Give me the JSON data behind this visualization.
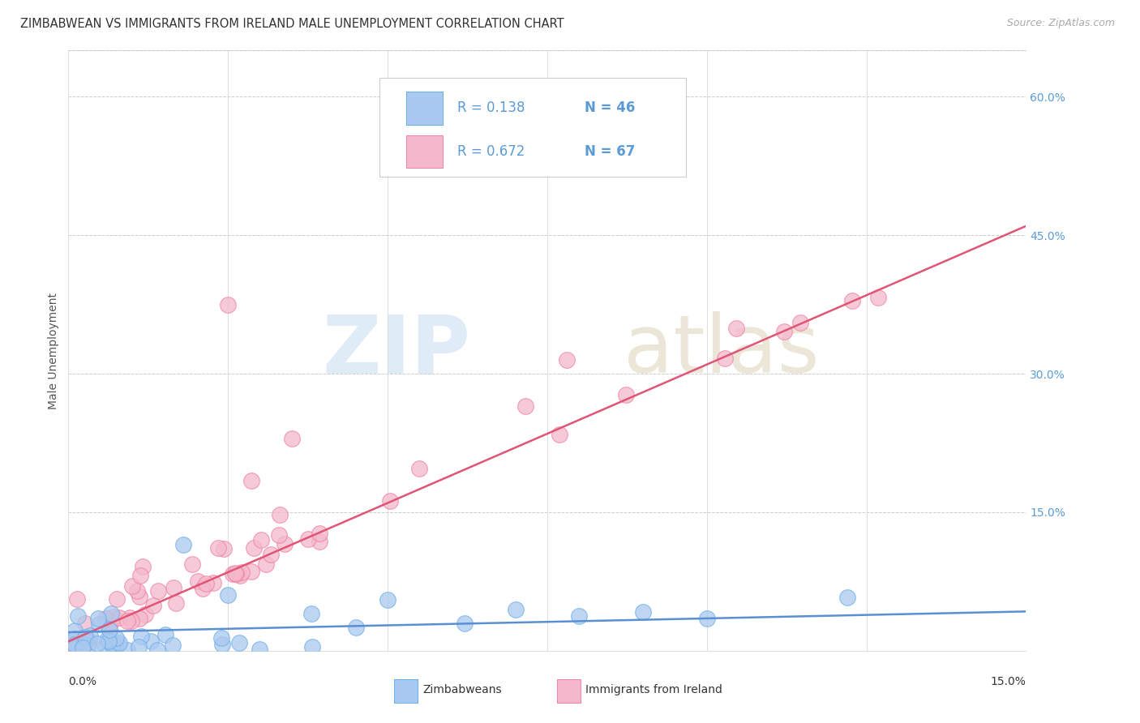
{
  "title": "ZIMBABWEAN VS IMMIGRANTS FROM IRELAND MALE UNEMPLOYMENT CORRELATION CHART",
  "source": "Source: ZipAtlas.com",
  "ylabel": "Male Unemployment",
  "ytick_vals": [
    0.0,
    0.15,
    0.3,
    0.45,
    0.6
  ],
  "ytick_labels": [
    "",
    "15.0%",
    "30.0%",
    "45.0%",
    "60.0%"
  ],
  "xlim": [
    0.0,
    0.15
  ],
  "ylim": [
    0.0,
    0.65
  ],
  "zimbabwe_fill": "#aac9f0",
  "zimbabwe_edge": "#6aaee8",
  "ireland_fill": "#f4b8cc",
  "ireland_edge": "#f080a0",
  "trendline_zimbabwe": "#5b8fd4",
  "trendline_ireland": "#e05575",
  "legend_r_zim": "R = 0.138",
  "legend_n_zim": "N = 46",
  "legend_r_ire": "R = 0.672",
  "legend_n_ire": "N = 67",
  "watermark_zip": "ZIP",
  "watermark_atlas": "atlas",
  "title_fontsize": 10.5,
  "source_fontsize": 9,
  "tick_fontsize": 10,
  "legend_fontsize": 12,
  "ylabel_fontsize": 10
}
